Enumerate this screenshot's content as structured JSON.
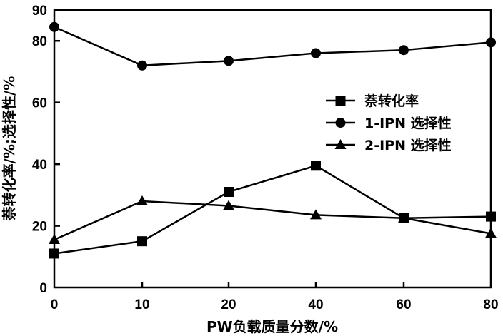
{
  "chart_data": {
    "type": "line",
    "x": [
      0,
      10,
      20,
      40,
      60,
      80
    ],
    "xlabel": "PW负载质量分数/%",
    "ylabel": "萘转化率/%;选择性/%",
    "xlim": [
      0,
      80
    ],
    "ylim": [
      0,
      90
    ],
    "x_ticks": [
      "0",
      "10",
      "20",
      "40",
      "60",
      "80"
    ],
    "y_ticks": [
      "0",
      "20",
      "40",
      "60",
      "80",
      "90"
    ],
    "grid": false,
    "legend_position": "right",
    "series": [
      {
        "name": "萘转化率",
        "marker": "square",
        "values": [
          11,
          15,
          31,
          39.5,
          22.5,
          23
        ]
      },
      {
        "name": "1-IPN 选择性",
        "marker": "circle",
        "values": [
          84.5,
          72,
          73.5,
          76,
          77,
          79.5
        ]
      },
      {
        "name": "2-IPN 选择性",
        "marker": "triangle",
        "values": [
          15.5,
          28,
          26.5,
          23.5,
          22.5,
          17.5
        ]
      }
    ]
  }
}
